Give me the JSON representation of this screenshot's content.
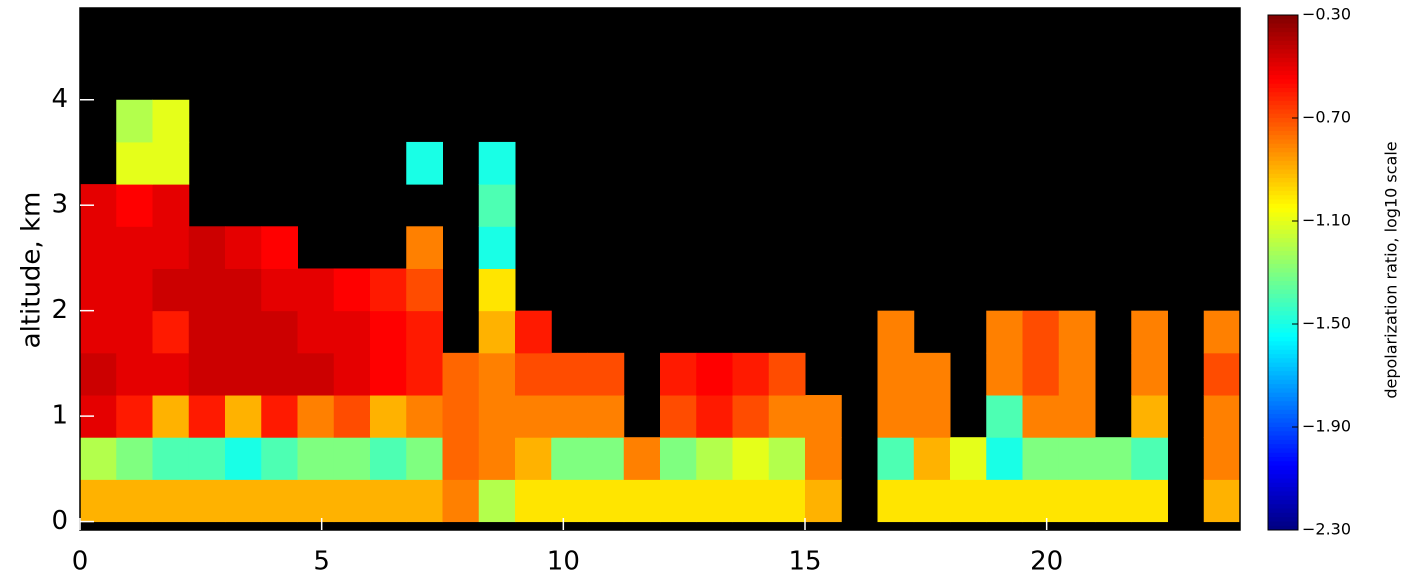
{
  "chart_data": {
    "type": "heatmap",
    "ylabel": "altitude, km",
    "colorbar_label": "depolarization ratio, log10 scale",
    "colormap": "jet",
    "background": "#000000",
    "xlim": [
      0,
      24
    ],
    "xticks": [
      0,
      5,
      10,
      15,
      20
    ],
    "ylim": [
      -0.08,
      4.87
    ],
    "yticks": [
      0,
      1,
      2,
      3,
      4
    ],
    "clim": [
      -2.3,
      -0.3
    ],
    "cticks": [
      {
        "value": -2.3,
        "label": "−2.30"
      },
      {
        "value": -1.9,
        "label": "−1.90"
      },
      {
        "value": -1.5,
        "label": "−1.50"
      },
      {
        "value": -1.1,
        "label": "−1.10"
      },
      {
        "value": -0.7,
        "label": "−0.70"
      },
      {
        "value": -0.3,
        "label": "−0.30"
      }
    ],
    "x": [
      0.375,
      1.125,
      1.875,
      2.625,
      3.375,
      4.125,
      4.875,
      5.625,
      6.375,
      7.125,
      7.875,
      8.625,
      9.375,
      10.125,
      10.875,
      11.625,
      12.375,
      13.125,
      13.875,
      14.625,
      15.375,
      16.125,
      16.875,
      17.625,
      18.375,
      19.125,
      19.875,
      20.625,
      21.375,
      22.125,
      22.875,
      23.625
    ],
    "y": [
      0.2,
      0.6,
      1.0,
      1.4,
      1.8,
      2.2,
      2.6,
      3.0,
      3.4,
      3.8,
      4.2,
      4.6
    ],
    "z": [
      [
        -0.9,
        -0.9,
        -0.9,
        -0.9,
        -0.9,
        -0.9,
        -0.9,
        -0.9,
        -0.9,
        -0.9,
        -0.8,
        -1.2,
        -1.0,
        -1.0,
        -1.0,
        -1.0,
        -1.0,
        -1.0,
        -1.0,
        -1.0,
        -0.9,
        null,
        -1.0,
        -1.0,
        -1.0,
        -1.0,
        -1.0,
        -1.0,
        -1.0,
        -1.0,
        null,
        -0.9
      ],
      [
        -1.2,
        -1.3,
        -1.4,
        -1.4,
        -1.5,
        -1.4,
        -1.3,
        -1.3,
        -1.4,
        -1.3,
        -0.75,
        -0.8,
        -0.9,
        -1.3,
        -1.3,
        -0.8,
        -1.3,
        -1.2,
        -1.1,
        -1.2,
        -0.8,
        null,
        -1.4,
        -0.9,
        -1.1,
        -1.5,
        -1.3,
        -1.3,
        -1.3,
        -1.4,
        null,
        -0.8
      ],
      [
        -0.5,
        -0.6,
        -0.9,
        -0.6,
        -0.9,
        -0.6,
        -0.8,
        -0.7,
        -0.9,
        -0.8,
        -0.75,
        -0.8,
        -0.8,
        -0.8,
        -0.8,
        null,
        -0.7,
        -0.6,
        -0.7,
        -0.8,
        -0.8,
        null,
        -0.8,
        -0.8,
        null,
        -1.4,
        -0.8,
        -0.8,
        null,
        -0.9,
        null,
        -0.8
      ],
      [
        -0.45,
        -0.5,
        -0.5,
        -0.45,
        -0.45,
        -0.45,
        -0.45,
        -0.5,
        -0.55,
        -0.6,
        -0.75,
        -0.8,
        -0.7,
        -0.7,
        -0.7,
        null,
        -0.6,
        -0.55,
        -0.6,
        -0.7,
        null,
        null,
        -0.8,
        -0.8,
        null,
        -0.8,
        -0.7,
        -0.8,
        null,
        -0.8,
        null,
        -0.7
      ],
      [
        -0.5,
        -0.5,
        -0.6,
        -0.45,
        -0.45,
        -0.45,
        -0.5,
        -0.5,
        -0.55,
        -0.6,
        null,
        -0.9,
        -0.6,
        null,
        null,
        null,
        null,
        null,
        null,
        null,
        null,
        null,
        -0.8,
        null,
        null,
        -0.8,
        -0.7,
        -0.8,
        null,
        -0.8,
        null,
        -0.8
      ],
      [
        -0.5,
        -0.5,
        -0.45,
        -0.45,
        -0.45,
        -0.5,
        -0.5,
        -0.55,
        -0.6,
        -0.7,
        null,
        -1.0,
        null,
        null,
        null,
        null,
        null,
        null,
        null,
        null,
        null,
        null,
        null,
        null,
        null,
        null,
        null,
        null,
        null,
        null,
        null,
        null
      ],
      [
        -0.5,
        -0.5,
        -0.5,
        -0.45,
        -0.5,
        -0.55,
        null,
        null,
        null,
        -0.8,
        null,
        -1.5,
        null,
        null,
        null,
        null,
        null,
        null,
        null,
        null,
        null,
        null,
        null,
        null,
        null,
        null,
        null,
        null,
        null,
        null,
        null,
        null
      ],
      [
        -0.5,
        -0.55,
        -0.5,
        null,
        null,
        null,
        null,
        null,
        null,
        null,
        null,
        -1.4,
        null,
        null,
        null,
        null,
        null,
        null,
        null,
        null,
        null,
        null,
        null,
        null,
        null,
        null,
        null,
        null,
        null,
        null,
        null,
        null
      ],
      [
        null,
        -1.1,
        -1.1,
        null,
        null,
        null,
        null,
        null,
        null,
        -1.5,
        null,
        -1.5,
        null,
        null,
        null,
        null,
        null,
        null,
        null,
        null,
        null,
        null,
        null,
        null,
        null,
        null,
        null,
        null,
        null,
        null,
        null,
        null
      ],
      [
        null,
        -1.2,
        -1.1,
        null,
        null,
        null,
        null,
        null,
        null,
        null,
        null,
        null,
        null,
        null,
        null,
        null,
        null,
        null,
        null,
        null,
        null,
        null,
        null,
        null,
        null,
        null,
        null,
        null,
        null,
        null,
        null,
        null
      ],
      [
        null,
        null,
        null,
        null,
        null,
        null,
        null,
        null,
        null,
        null,
        null,
        null,
        null,
        null,
        null,
        null,
        null,
        null,
        null,
        null,
        null,
        null,
        null,
        null,
        null,
        null,
        null,
        null,
        null,
        null,
        null,
        null
      ],
      [
        null,
        null,
        null,
        null,
        null,
        null,
        null,
        null,
        null,
        null,
        null,
        null,
        null,
        null,
        null,
        null,
        null,
        null,
        null,
        null,
        null,
        null,
        null,
        null,
        null,
        null,
        null,
        null,
        null,
        null,
        null,
        null
      ]
    ]
  }
}
